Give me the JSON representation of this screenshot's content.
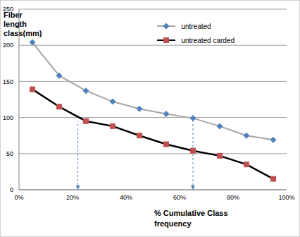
{
  "chart_data": {
    "type": "line",
    "x_label": "% Cumulative Class frequency",
    "y_label": "Fiber length class(mm)",
    "x": [
      5,
      15,
      25,
      35,
      45,
      55,
      65,
      75,
      85,
      95
    ],
    "series": [
      {
        "name": "untreated",
        "color": "#4f81bd",
        "marker": "diamond",
        "values": [
          204,
          158,
          137,
          122,
          112,
          105,
          99,
          88,
          75,
          69
        ]
      },
      {
        "name": "untreated carded",
        "color": "#c0504d",
        "marker": "square",
        "values": [
          139,
          115,
          95,
          88,
          75,
          63,
          54,
          47,
          35,
          15
        ]
      }
    ],
    "xlim": [
      0,
      100
    ],
    "xticks": [
      {
        "value": 0,
        "label": "0%"
      },
      {
        "value": 20,
        "label": "20%"
      },
      {
        "value": 40,
        "label": "40%"
      },
      {
        "value": 60,
        "label": "60%"
      },
      {
        "value": 80,
        "label": "80%"
      },
      {
        "value": 100,
        "label": "100%"
      }
    ],
    "ylim": [
      0,
      250
    ],
    "yticks": [
      0,
      50,
      100,
      150,
      200,
      250
    ],
    "grid": true,
    "legend": "top right",
    "vertical_lines": [
      {
        "x": 22,
        "y": 95
      },
      {
        "x": 65,
        "y": 99
      }
    ]
  }
}
